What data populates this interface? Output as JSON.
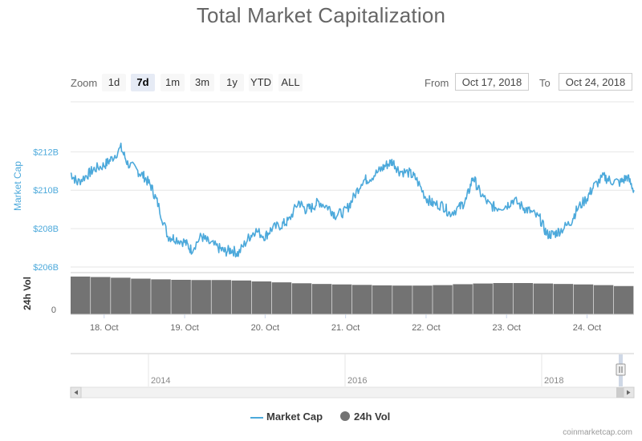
{
  "header": {
    "title": "Total Market Capitalization"
  },
  "zoom": {
    "label": "Zoom",
    "buttons": [
      "1d",
      "7d",
      "1m",
      "3m",
      "1y",
      "YTD",
      "ALL"
    ],
    "active": "7d"
  },
  "range": {
    "from_label": "From",
    "from_value": "Oct 17, 2018",
    "to_label": "To",
    "to_value": "Oct 24, 2018"
  },
  "footer": {
    "credit": "coinmarketcap.com"
  },
  "colors": {
    "market_cap": "#4ca9db",
    "volume": "#737373",
    "axis_text": "#4ca9db"
  },
  "chart_data": {
    "type": "line",
    "x_unit": "date (Oct 2018)",
    "xlim": [
      "Oct 17, 2018 14:00",
      "Oct 24, 2018 14:00"
    ],
    "x_ticks": [
      "18. Oct",
      "19. Oct",
      "20. Oct",
      "21. Oct",
      "22. Oct",
      "23. Oct",
      "24. Oct"
    ],
    "ylabel": "Market Cap",
    "y_ticks": [
      "$212B",
      "$210B",
      "$208B",
      "$206B"
    ],
    "ylim": [
      206,
      212.6
    ],
    "volume_label": "24h Vol",
    "volume_ticks": [
      "0"
    ],
    "legend": [
      "Market Cap",
      "24h Vol"
    ],
    "legend_position": "bottom-center",
    "series": [
      {
        "name": "Market Cap",
        "unit": "$B",
        "x": [
          "Oct 17 14:00",
          "Oct 17 16:00",
          "Oct 17 19:00",
          "Oct 17 21:00",
          "Oct 18 00:00",
          "Oct 18 02:00",
          "Oct 18 05:00",
          "Oct 18 07:00",
          "Oct 18 10:00",
          "Oct 18 12:00",
          "Oct 18 14:00",
          "Oct 18 16:00",
          "Oct 18 19:00",
          "Oct 18 21:00",
          "Oct 19 00:00",
          "Oct 19 02:00",
          "Oct 19 05:00",
          "Oct 19 07:00",
          "Oct 19 10:00",
          "Oct 19 12:00",
          "Oct 19 14:00",
          "Oct 19 16:00",
          "Oct 19 19:00",
          "Oct 19 21:00",
          "Oct 20 00:00",
          "Oct 20 02:00",
          "Oct 20 05:00",
          "Oct 20 07:00",
          "Oct 20 10:00",
          "Oct 20 12:00",
          "Oct 20 14:00",
          "Oct 20 16:00",
          "Oct 20 19:00",
          "Oct 20 21:00",
          "Oct 21 00:00",
          "Oct 21 02:00",
          "Oct 21 05:00",
          "Oct 21 07:00",
          "Oct 21 10:00",
          "Oct 21 12:00",
          "Oct 21 14:00",
          "Oct 21 16:00",
          "Oct 21 19:00",
          "Oct 21 21:00",
          "Oct 22 00:00",
          "Oct 22 02:00",
          "Oct 22 05:00",
          "Oct 22 07:00",
          "Oct 22 10:00",
          "Oct 22 12:00",
          "Oct 22 14:00",
          "Oct 22 16:00",
          "Oct 22 19:00",
          "Oct 22 21:00",
          "Oct 23 00:00",
          "Oct 23 02:00",
          "Oct 23 05:00",
          "Oct 23 07:00",
          "Oct 23 10:00",
          "Oct 23 12:00",
          "Oct 23 14:00",
          "Oct 23 16:00",
          "Oct 23 19:00",
          "Oct 23 21:00",
          "Oct 24 00:00",
          "Oct 24 02:00",
          "Oct 24 05:00",
          "Oct 24 07:00",
          "Oct 24 10:00",
          "Oct 24 12:00",
          "Oct 24 14:00"
        ],
        "values": [
          210.9,
          210.4,
          210.8,
          211.1,
          211.3,
          211.6,
          212.2,
          211.4,
          211.0,
          210.7,
          210.2,
          209.3,
          207.6,
          207.5,
          207.3,
          206.9,
          207.6,
          207.3,
          207.0,
          206.8,
          206.9,
          206.7,
          207.5,
          207.9,
          207.6,
          208.0,
          208.2,
          208.4,
          209.4,
          209.0,
          209.1,
          209.4,
          209.1,
          208.7,
          208.9,
          209.5,
          210.5,
          210.6,
          211.0,
          211.3,
          211.5,
          211.0,
          210.9,
          210.6,
          209.6,
          209.3,
          209.2,
          208.8,
          209.1,
          209.5,
          210.7,
          209.9,
          209.2,
          209.1,
          209.2,
          209.5,
          209.1,
          208.9,
          208.5,
          207.7,
          207.7,
          207.9,
          208.3,
          209.0,
          209.6,
          210.2,
          210.7,
          210.5,
          210.4,
          210.7,
          210.0
        ]
      },
      {
        "name": "24h Vol",
        "unit": "relative",
        "x": [
          "Oct 17 14:00",
          "Oct 18 02:00",
          "Oct 18 14:00",
          "Oct 19 02:00",
          "Oct 19 14:00",
          "Oct 20 02:00",
          "Oct 20 14:00",
          "Oct 21 02:00",
          "Oct 21 14:00",
          "Oct 22 02:00",
          "Oct 22 14:00",
          "Oct 23 02:00",
          "Oct 23 14:00",
          "Oct 24 02:00",
          "Oct 24 14:00"
        ],
        "values": [
          41,
          40,
          38,
          37,
          37,
          35,
          33,
          32,
          31,
          31,
          33,
          34,
          33,
          32,
          30
        ]
      }
    ]
  },
  "navigator": {
    "labels": [
      "2014",
      "2016",
      "2018"
    ]
  }
}
